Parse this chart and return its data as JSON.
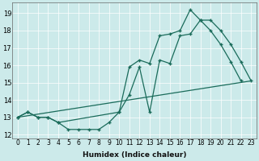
{
  "xlabel": "Humidex (Indice chaleur)",
  "background_color": "#cceaea",
  "line_color": "#1a6b5a",
  "xlim": [
    -0.5,
    23.5
  ],
  "ylim": [
    11.8,
    19.6
  ],
  "xticks": [
    0,
    1,
    2,
    3,
    4,
    5,
    6,
    7,
    8,
    9,
    10,
    11,
    12,
    13,
    14,
    15,
    16,
    17,
    18,
    19,
    20,
    21,
    22,
    23
  ],
  "yticks": [
    12,
    13,
    14,
    15,
    16,
    17,
    18,
    19
  ],
  "series1_x": [
    0,
    1,
    2,
    3,
    4,
    5,
    6,
    7,
    8,
    9,
    10,
    11,
    12,
    13,
    14,
    15,
    16,
    17,
    18,
    19,
    20,
    21,
    22
  ],
  "series1_y": [
    13.0,
    13.3,
    13.0,
    13.0,
    12.7,
    12.3,
    12.3,
    12.3,
    12.3,
    12.7,
    13.3,
    15.9,
    16.3,
    16.1,
    17.7,
    17.8,
    18.0,
    19.2,
    18.6,
    18.0,
    17.2,
    16.2,
    15.1
  ],
  "series2_x": [
    0,
    1,
    2,
    3,
    4,
    10,
    11,
    12,
    13,
    14,
    15,
    16,
    17,
    18,
    19,
    20,
    21,
    22,
    23
  ],
  "series2_y": [
    13.0,
    13.3,
    13.0,
    13.0,
    12.7,
    13.3,
    14.3,
    15.9,
    13.3,
    16.3,
    16.1,
    17.7,
    17.8,
    18.6,
    18.6,
    18.0,
    17.2,
    16.2,
    15.1
  ],
  "series3_x": [
    0,
    23
  ],
  "series3_y": [
    13.0,
    15.1
  ],
  "grid_color": "#b8d8d8",
  "tick_label_fontsize": 5.5,
  "xlabel_fontsize": 6.5
}
